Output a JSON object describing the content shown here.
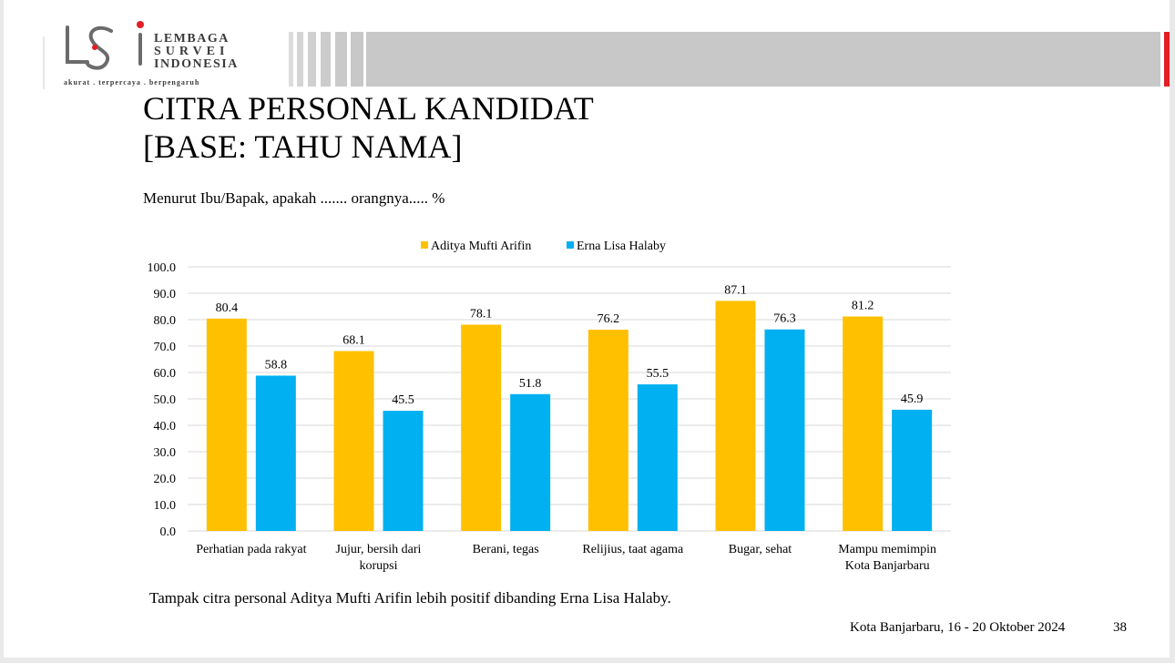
{
  "logo": {
    "line1": "LEMBAGA",
    "line2": "SURVEI",
    "line3": "INDONESIA",
    "tagline": "akurat . terpercaya . berpengaruh"
  },
  "title_line1": "CITRA PERSONAL KANDIDAT",
  "title_line2": "[BASE: TAHU NAMA]",
  "question": "Menurut Ibu/Bapak, apakah ....... orangnya..... %",
  "chart_data": {
    "type": "bar",
    "categories": [
      [
        "Perhatian pada rakyat"
      ],
      [
        "Jujur, bersih dari",
        "korupsi"
      ],
      [
        "Berani, tegas"
      ],
      [
        "Relijius, taat agama"
      ],
      [
        "Bugar, sehat"
      ],
      [
        "Mampu memimpin",
        "Kota Banjarbaru"
      ]
    ],
    "series": [
      {
        "name": "Aditya Mufti Arifin",
        "values": [
          80.4,
          68.1,
          78.1,
          76.2,
          87.1,
          81.2
        ],
        "color": "#FFC000"
      },
      {
        "name": "Erna Lisa Halaby",
        "values": [
          58.8,
          45.5,
          51.8,
          55.5,
          76.3,
          45.9
        ],
        "color": "#00B0F0"
      }
    ],
    "yticks": [
      "0.0",
      "10.0",
      "20.0",
      "30.0",
      "40.0",
      "50.0",
      "60.0",
      "70.0",
      "80.0",
      "90.0",
      "100.0"
    ],
    "ylim": [
      0,
      100
    ],
    "grid": true,
    "legend": "top-center"
  },
  "conclusion": "Tampak citra personal Aditya Mufti Arifin lebih positif dibanding Erna Lisa Halaby.",
  "footer_date": "Kota Banjarbaru, 16 - 20 Oktober 2024",
  "page_number": "38",
  "colors": {
    "accent_red": "#E31E24",
    "header_gray": "#c8c8c8"
  }
}
